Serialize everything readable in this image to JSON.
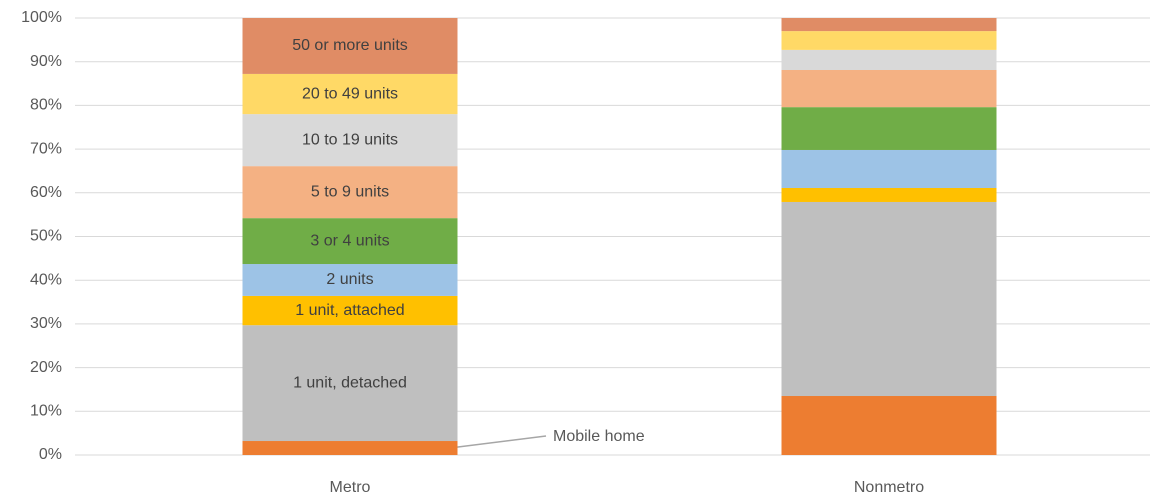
{
  "chart_data": {
    "type": "stacked_bar",
    "categories": [
      "Metro",
      "Nonmetro"
    ],
    "series": [
      {
        "name": "Mobile home",
        "color": "#ed7d31",
        "values": [
          3.2,
          13.5
        ]
      },
      {
        "name": "1 unit, detached",
        "color": "#bfbfbf",
        "values": [
          26.5,
          44.4
        ]
      },
      {
        "name": "1 unit, attached",
        "color": "#ffc000",
        "values": [
          6.7,
          3.2
        ]
      },
      {
        "name": "2 units",
        "color": "#9dc3e6",
        "values": [
          7.3,
          8.7
        ]
      },
      {
        "name": "3 or 4 units",
        "color": "#70ad47",
        "values": [
          10.5,
          9.8
        ]
      },
      {
        "name": "5 to 9 units",
        "color": "#f4b183",
        "values": [
          11.9,
          8.5
        ]
      },
      {
        "name": "10 to 19 units",
        "color": "#d9d9d9",
        "values": [
          11.9,
          4.6
        ]
      },
      {
        "name": "20 to 49 units",
        "color": "#ffd966",
        "values": [
          9.2,
          4.3
        ]
      },
      {
        "name": "50 or more units",
        "color": "#e08c65",
        "values": [
          12.8,
          3.0
        ]
      }
    ],
    "ylim": [
      0,
      100
    ],
    "yticks": [
      {
        "value": 0,
        "label": "0%"
      },
      {
        "value": 10,
        "label": "10%"
      },
      {
        "value": 20,
        "label": "20%"
      },
      {
        "value": 30,
        "label": "30%"
      },
      {
        "value": 40,
        "label": "40%"
      },
      {
        "value": 50,
        "label": "50%"
      },
      {
        "value": 60,
        "label": "60%"
      },
      {
        "value": 70,
        "label": "70%"
      },
      {
        "value": 80,
        "label": "80%"
      },
      {
        "value": 90,
        "label": "90%"
      },
      {
        "value": 100,
        "label": "100%"
      }
    ],
    "grid": true
  }
}
